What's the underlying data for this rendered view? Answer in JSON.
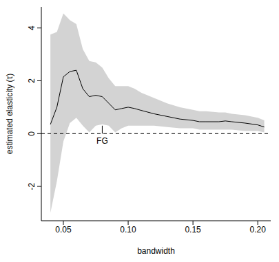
{
  "chart_data": {
    "type": "line",
    "x_label": "bandwidth",
    "y_label": "estimated elasticity (τ)",
    "x": [
      0.04,
      0.045,
      0.05,
      0.055,
      0.06,
      0.065,
      0.07,
      0.075,
      0.08,
      0.085,
      0.09,
      0.095,
      0.1,
      0.105,
      0.11,
      0.12,
      0.13,
      0.14,
      0.15,
      0.155,
      0.16,
      0.17,
      0.175,
      0.18,
      0.19,
      0.2,
      0.205
    ],
    "series": [
      {
        "type": "area",
        "color": "#d3d3d3",
        "lower": [
          -3.0,
          -1.8,
          -0.3,
          0.4,
          0.6,
          0.3,
          0.05,
          0.3,
          0.35,
          0.3,
          0.05,
          0.2,
          0.3,
          0.3,
          0.3,
          0.3,
          0.25,
          0.2,
          0.2,
          0.15,
          0.15,
          0.15,
          0.15,
          0.15,
          0.1,
          0.1,
          0.05
        ],
        "upper": [
          3.75,
          3.85,
          4.55,
          4.3,
          4.15,
          3.2,
          2.75,
          2.7,
          2.5,
          2.1,
          1.8,
          1.8,
          1.8,
          1.7,
          1.55,
          1.35,
          1.15,
          1.0,
          0.9,
          0.85,
          0.85,
          0.8,
          0.8,
          0.75,
          0.7,
          0.6,
          0.5
        ]
      },
      {
        "type": "line",
        "color": "#000000",
        "values": [
          0.35,
          1.0,
          2.15,
          2.35,
          2.4,
          1.7,
          1.4,
          1.45,
          1.4,
          1.15,
          0.9,
          0.95,
          1.0,
          0.95,
          0.88,
          0.75,
          0.65,
          0.55,
          0.5,
          0.45,
          0.45,
          0.45,
          0.48,
          0.45,
          0.4,
          0.33,
          0.25
        ]
      }
    ],
    "reference_lines": [
      {
        "y": 0,
        "line_style": "dashed",
        "color": "#000000"
      }
    ],
    "annotations": [
      {
        "text": "FG",
        "x": 0.08,
        "y": 0,
        "y_end": 0.3
      }
    ],
    "xlim": [
      0.033,
      0.21
    ],
    "xticks": [
      {
        "value": 0.05,
        "label": "0.05"
      },
      {
        "value": 0.1,
        "label": "0.10"
      },
      {
        "value": 0.15,
        "label": "0.15"
      },
      {
        "value": 0.2,
        "label": "0.20"
      }
    ],
    "ylim": [
      -3.3,
      4.8
    ],
    "yticks": [
      -2,
      0,
      2,
      4
    ],
    "grid": false
  }
}
